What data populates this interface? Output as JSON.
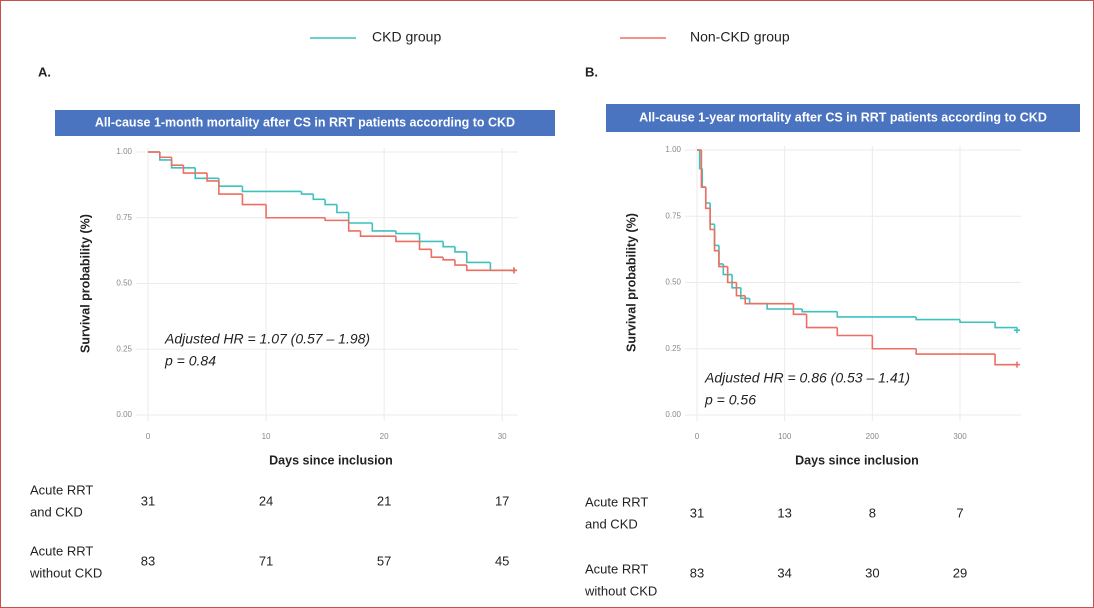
{
  "chart_data": [
    {
      "type": "step",
      "panel_label": "A.",
      "title": "All-cause 1-month mortality after CS in RRT patients according to CKD",
      "xlabel": "Days since inclusion",
      "ylabel": "Survival probability (%)",
      "xlim": [
        0,
        31
      ],
      "ylim": [
        0,
        1
      ],
      "xticks": [
        0,
        10,
        20,
        30
      ],
      "yticks": [
        {
          "value": 0,
          "label": "0.00"
        },
        {
          "value": 0.25,
          "label": "0.25"
        },
        {
          "value": 0.5,
          "label": "0.50"
        },
        {
          "value": 0.75,
          "label": "0.75"
        },
        {
          "value": 1,
          "label": "1.00"
        }
      ],
      "grid": true,
      "annotations": [
        "Adjusted HR = 1.07 (0.57 – 1.98)",
        "p = 0.84"
      ],
      "series": [
        {
          "name": "CKD group",
          "color": "#3fc1bd",
          "x": [
            0,
            1,
            2,
            4,
            6,
            8,
            13,
            14,
            15,
            16,
            17,
            19,
            21,
            23,
            25,
            26,
            27,
            29,
            31
          ],
          "values": [
            1.0,
            0.97,
            0.94,
            0.9,
            0.87,
            0.85,
            0.84,
            0.82,
            0.8,
            0.77,
            0.73,
            0.7,
            0.69,
            0.66,
            0.64,
            0.62,
            0.58,
            0.55,
            0.55
          ]
        },
        {
          "name": "Non-CKD group",
          "color": "#ee6e62",
          "x": [
            0,
            1,
            2,
            3,
            5,
            6,
            8,
            10,
            15,
            17,
            18,
            21,
            23,
            24,
            25,
            26,
            27,
            31
          ],
          "values": [
            1.0,
            0.98,
            0.95,
            0.92,
            0.89,
            0.84,
            0.8,
            0.75,
            0.74,
            0.7,
            0.68,
            0.66,
            0.63,
            0.6,
            0.59,
            0.57,
            0.55,
            0.55
          ]
        }
      ],
      "risk_table": [
        {
          "label": [
            "Acute RRT",
            "and CKD"
          ],
          "values": [
            31,
            24,
            21,
            17
          ]
        },
        {
          "label": [
            "Acute RRT",
            "without CKD"
          ],
          "values": [
            83,
            71,
            57,
            45
          ]
        }
      ]
    },
    {
      "type": "step",
      "panel_label": "B.",
      "title": "All-cause 1-year mortality after CS in RRT patients according to CKD",
      "xlabel": "Days since inclusion",
      "ylabel": "Survival probability (%)",
      "xlim": [
        0,
        365
      ],
      "ylim": [
        0,
        1
      ],
      "xticks": [
        0,
        100,
        200,
        300
      ],
      "yticks": [
        {
          "value": 0,
          "label": "0.00"
        },
        {
          "value": 0.25,
          "label": "0.25"
        },
        {
          "value": 0.5,
          "label": "0.50"
        },
        {
          "value": 0.75,
          "label": "0.75"
        },
        {
          "value": 1,
          "label": "1.00"
        }
      ],
      "grid": true,
      "annotations": [
        "Adjusted HR = 0.86 (0.53 – 1.41)",
        "p = 0.56"
      ],
      "series": [
        {
          "color": "#3fc1bd",
          "x": [
            0,
            3,
            6,
            10,
            15,
            20,
            25,
            30,
            40,
            50,
            60,
            80,
            120,
            160,
            250,
            300,
            340,
            365
          ],
          "values": [
            1.0,
            0.93,
            0.86,
            0.8,
            0.72,
            0.64,
            0.57,
            0.53,
            0.48,
            0.44,
            0.42,
            0.4,
            0.39,
            0.37,
            0.36,
            0.35,
            0.33,
            0.32
          ]
        },
        {
          "color": "#ee6e62",
          "x": [
            0,
            5,
            10,
            15,
            20,
            25,
            35,
            45,
            55,
            110,
            125,
            160,
            200,
            250,
            340,
            365
          ],
          "values": [
            1.0,
            0.86,
            0.78,
            0.7,
            0.62,
            0.56,
            0.5,
            0.45,
            0.42,
            0.38,
            0.33,
            0.3,
            0.25,
            0.23,
            0.19,
            0.19
          ]
        }
      ],
      "risk_table": [
        {
          "label": [
            "Acute RRT",
            "and CKD"
          ],
          "values": [
            31,
            13,
            8,
            7
          ]
        },
        {
          "label": [
            "Acute RRT",
            "without CKD"
          ],
          "values": [
            83,
            34,
            30,
            29
          ]
        }
      ]
    }
  ]
}
